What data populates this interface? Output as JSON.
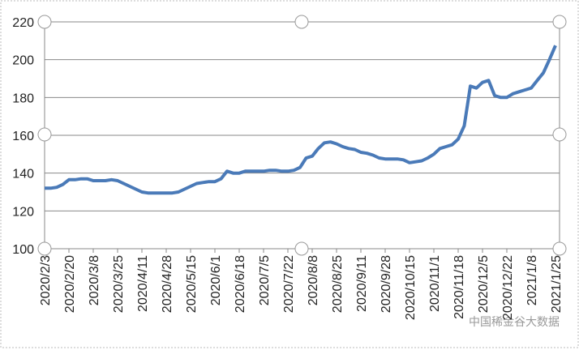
{
  "chart_data": {
    "type": "line",
    "categories": [
      "2020/2/3",
      null,
      null,
      null,
      "2020/2/20",
      null,
      null,
      null,
      "2020/3/8",
      null,
      null,
      null,
      "2020/3/25",
      null,
      null,
      null,
      "2020/4/11",
      null,
      null,
      null,
      "2020/4/28",
      null,
      null,
      null,
      "2020/5/15",
      null,
      null,
      null,
      "2020/6/1",
      null,
      null,
      null,
      "2020/6/18",
      null,
      null,
      null,
      "2020/7/5",
      null,
      null,
      null,
      "2020/7/22",
      null,
      null,
      null,
      "2020/8/8",
      null,
      null,
      null,
      "2020/8/25",
      null,
      null,
      null,
      "2020/9/11",
      null,
      null,
      null,
      "2020/9/28",
      null,
      null,
      null,
      "2020/10/15",
      null,
      null,
      null,
      "2020/11/1",
      null,
      null,
      null,
      "2020/11/18",
      null,
      null,
      null,
      "2020/12/5",
      null,
      null,
      null,
      "2020/12/22",
      null,
      null,
      null,
      "2021/1/8",
      null,
      null,
      null,
      "2021/1/25"
    ],
    "series": [
      {
        "color": "#4a7ab8",
        "values": [
          132,
          132,
          132.5,
          134,
          136.5,
          136.5,
          137,
          137,
          136,
          136,
          136,
          136.5,
          136,
          134.5,
          133,
          131.5,
          130,
          129.5,
          129.5,
          129.5,
          129.5,
          129.5,
          130,
          131.5,
          133,
          134.5,
          135,
          135.5,
          135.5,
          137,
          141,
          140,
          140,
          141,
          141,
          141,
          141,
          141.5,
          141.5,
          141,
          141,
          141.5,
          143,
          148,
          149,
          153,
          156,
          156.5,
          155.5,
          154,
          153,
          152.5,
          151,
          150.5,
          149.5,
          148,
          147.5,
          147.5,
          147.5,
          147,
          145.5,
          146,
          146.5,
          148,
          150,
          153,
          154,
          155,
          158,
          165,
          186,
          185,
          188,
          189,
          181,
          180,
          180,
          182,
          183,
          184,
          185,
          189,
          193,
          200,
          207.5
        ]
      }
    ],
    "ylim": [
      100,
      220
    ],
    "yticks": [
      100,
      120,
      140,
      160,
      180,
      200,
      220
    ],
    "grid": true,
    "watermark": "中国稀金谷大数据"
  }
}
